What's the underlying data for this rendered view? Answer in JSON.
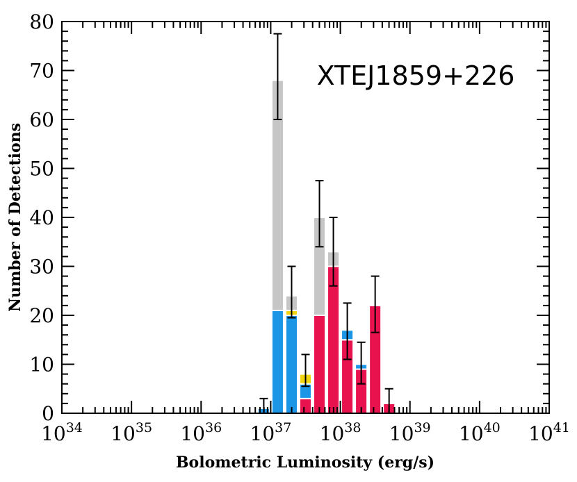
{
  "chart_data": {
    "type": "bar",
    "stacked": true,
    "title": "XTEJ1859+226",
    "xlabel": "Bolometric Luminosity (erg/s)",
    "ylabel": "Number of Detections",
    "x_scale": "log",
    "xlim": [
      1e+34,
      1e+41
    ],
    "ylim": [
      0,
      80
    ],
    "grid": false,
    "x_tick_labels": [
      {
        "base": "10",
        "exp": "34",
        "value": 1e+34
      },
      {
        "base": "10",
        "exp": "35",
        "value": 1e+35
      },
      {
        "base": "10",
        "exp": "36",
        "value": 1e+36
      },
      {
        "base": "10",
        "exp": "37",
        "value": 1e+37
      },
      {
        "base": "10",
        "exp": "38",
        "value": 1e+38
      },
      {
        "base": "10",
        "exp": "39",
        "value": 1e+39
      },
      {
        "base": "10",
        "exp": "40",
        "value": 1e+40
      },
      {
        "base": "10",
        "exp": "41",
        "value": 1e+41
      }
    ],
    "y_tick_labels": [
      "0",
      "10",
      "20",
      "30",
      "40",
      "50",
      "60",
      "70",
      "80"
    ],
    "bin_log_width": 0.2,
    "bins": [
      {
        "log_lum_center": 36.9,
        "red": 0,
        "blue": 1,
        "yellow": 0,
        "gray": 0,
        "total": 1,
        "err": [
          0,
          3
        ]
      },
      {
        "log_lum_center": 37.1,
        "red": 0,
        "blue": 21,
        "yellow": 0,
        "gray": 47,
        "total": 68,
        "err": [
          60,
          77.5
        ]
      },
      {
        "log_lum_center": 37.3,
        "red": 0,
        "blue": 20,
        "yellow": 1,
        "gray": 3,
        "total": 24,
        "err": [
          19.5,
          30
        ]
      },
      {
        "log_lum_center": 37.5,
        "red": 3,
        "blue": 3,
        "yellow": 2,
        "gray": 0,
        "total": 8,
        "err": [
          5.5,
          12
        ]
      },
      {
        "log_lum_center": 37.7,
        "red": 20,
        "blue": 0,
        "yellow": 0,
        "gray": 20,
        "total": 40,
        "err": [
          34,
          47.5
        ]
      },
      {
        "log_lum_center": 37.9,
        "red": 30,
        "blue": 0,
        "yellow": 0,
        "gray": 3,
        "total": 33,
        "err": [
          26,
          40
        ]
      },
      {
        "log_lum_center": 38.1,
        "red": 15,
        "blue": 2,
        "yellow": 0,
        "gray": 0,
        "total": 17,
        "err": [
          11,
          22.5
        ]
      },
      {
        "log_lum_center": 38.3,
        "red": 9,
        "blue": 1,
        "yellow": 0,
        "gray": 0,
        "total": 10,
        "err": [
          6,
          14.5
        ]
      },
      {
        "log_lum_center": 38.5,
        "red": 22,
        "blue": 0,
        "yellow": 0,
        "gray": 0,
        "total": 22,
        "err": [
          16.5,
          28
        ]
      },
      {
        "log_lum_center": 38.7,
        "red": 2,
        "blue": 0,
        "yellow": 0,
        "gray": 0,
        "total": 2,
        "err": [
          0,
          5
        ]
      }
    ],
    "colors": {
      "red": "#e8124f",
      "blue": "#1b95e6",
      "yellow": "#f2d40e",
      "gray": "#c6c6c6"
    }
  }
}
